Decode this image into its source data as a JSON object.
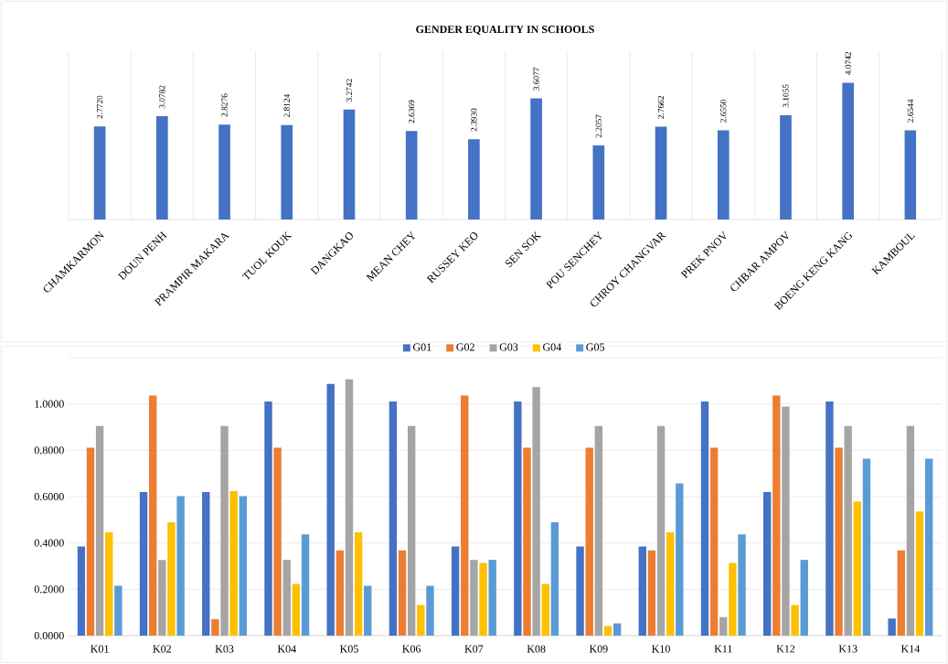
{
  "chart_data": [
    {
      "type": "bar",
      "title": "GENDER EQUALITY IN SCHOOLS",
      "categories": [
        "CHAMKARMON",
        "DOUN PENH",
        "PRAMPIR MAKARA",
        "TUOL KOUK",
        "DANGKAO",
        "MEAN CHEY",
        "RUSSEY KEO",
        "SEN SOK",
        "POU SENCHEY",
        "CHROY CHANGVAR",
        "PREK PNOV",
        "CHBAR AMPOV",
        "BOENG KENG KANG",
        "KAMBOUL"
      ],
      "values": [
        2.772,
        3.0782,
        2.8276,
        2.8124,
        3.2742,
        2.6369,
        2.393,
        3.6077,
        2.2057,
        2.7662,
        2.655,
        3.1055,
        4.0742,
        2.6544
      ],
      "value_labels": [
        "2.7720",
        "3.0782",
        "2.8276",
        "2.8124",
        "3.2742",
        "2.6369",
        "2.3930",
        "3.6077",
        "2.2057",
        "2.7662",
        "2.6550",
        "3.1055",
        "4.0742",
        "2.6544"
      ],
      "color": "#4472c4",
      "grid": "x"
    },
    {
      "type": "bar",
      "categories": [
        "K01",
        "K02",
        "K03",
        "K04",
        "K05",
        "K06",
        "K07",
        "K08",
        "K09",
        "K10",
        "K11",
        "K12",
        "K13",
        "K14"
      ],
      "series": [
        {
          "name": "G01",
          "color": "#4472c4",
          "values": [
            0.385,
            0.62,
            0.62,
            1.011,
            1.087,
            1.011,
            0.385,
            1.011,
            0.385,
            0.385,
            1.011,
            0.62,
            1.011,
            0.074
          ]
        },
        {
          "name": "G02",
          "color": "#ed7d31",
          "values": [
            0.811,
            1.037,
            0.071,
            0.811,
            0.368,
            0.368,
            1.037,
            0.811,
            0.811,
            0.368,
            0.811,
            1.037,
            0.811,
            0.368
          ]
        },
        {
          "name": "G03",
          "color": "#a5a5a5",
          "values": [
            0.905,
            0.327,
            0.905,
            0.327,
            1.106,
            0.905,
            0.327,
            1.073,
            0.905,
            0.905,
            0.08,
            0.989,
            0.905,
            0.905
          ]
        },
        {
          "name": "G04",
          "color": "#ffc000",
          "values": [
            0.446,
            0.489,
            0.624,
            0.223,
            0.446,
            0.132,
            0.314,
            0.223,
            0.041,
            0.446,
            0.314,
            0.132,
            0.579,
            0.536
          ]
        },
        {
          "name": "G05",
          "color": "#5b9bd5",
          "values": [
            0.215,
            0.602,
            0.602,
            0.437,
            0.215,
            0.215,
            0.327,
            0.489,
            0.053,
            0.657,
            0.437,
            0.327,
            0.764,
            0.764
          ]
        }
      ],
      "yticks": [
        {
          "value": 0,
          "label": "0.0000"
        },
        {
          "value": 0.2,
          "label": "0.2000"
        },
        {
          "value": 0.4,
          "label": "0.4000"
        },
        {
          "value": 0.6,
          "label": "0.6000"
        },
        {
          "value": 0.8,
          "label": "0.8000"
        },
        {
          "value": 1.0,
          "label": "1.0000"
        }
      ],
      "ylim": [
        0,
        1.2
      ],
      "grid": "y",
      "legend": "top"
    }
  ]
}
